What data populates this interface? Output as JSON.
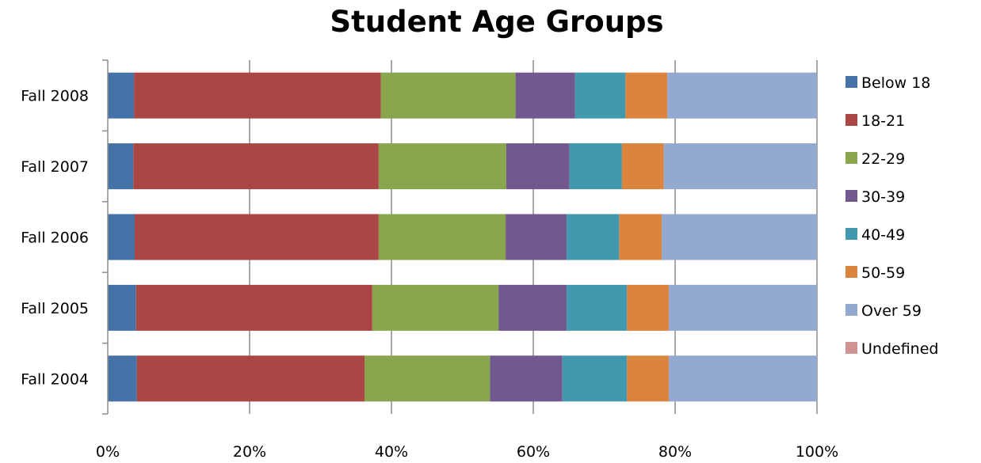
{
  "chart_data": {
    "type": "bar",
    "orientation": "horizontal",
    "stacked": "percent",
    "title": "Student Age Groups",
    "categories": [
      "Fall 2008",
      "Fall 2007",
      "Fall 2006",
      "Fall 2005",
      "Fall 2004"
    ],
    "x_ticks": [
      "0%",
      "20%",
      "40%",
      "60%",
      "80%",
      "100%"
    ],
    "xlim": [
      0,
      100
    ],
    "grid": true,
    "legend": "right",
    "series": [
      {
        "name": "Below 18",
        "color": "#4572A7",
        "values": [
          3.7,
          3.6,
          3.8,
          4.0,
          4.1
        ]
      },
      {
        "name": "18-21",
        "color": "#AA4643",
        "values": [
          34.8,
          34.6,
          34.4,
          33.3,
          32.1
        ]
      },
      {
        "name": "22-29",
        "color": "#89A54E",
        "values": [
          19.0,
          18.0,
          17.9,
          17.8,
          17.7
        ]
      },
      {
        "name": "30-39",
        "color": "#71588F",
        "values": [
          8.4,
          8.9,
          8.6,
          9.6,
          10.2
        ]
      },
      {
        "name": "40-49",
        "color": "#4198AF",
        "values": [
          7.1,
          7.4,
          7.4,
          8.5,
          9.1
        ]
      },
      {
        "name": "50-59",
        "color": "#DB843D",
        "values": [
          5.9,
          5.9,
          6.0,
          5.9,
          5.9
        ]
      },
      {
        "name": "Over 59",
        "color": "#93A9CF",
        "values": [
          21.1,
          21.6,
          21.9,
          20.9,
          20.9
        ]
      },
      {
        "name": "Undefined",
        "color": "#D19392",
        "values": [
          0,
          0,
          0,
          0,
          0
        ]
      }
    ]
  }
}
